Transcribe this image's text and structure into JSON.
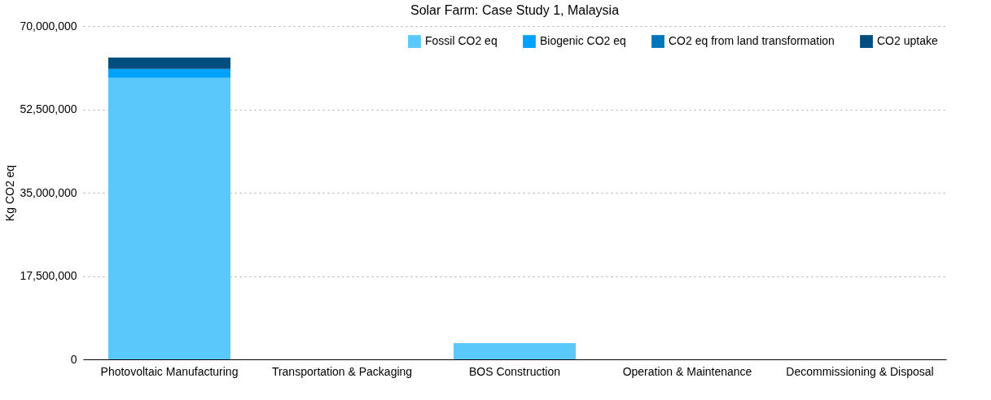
{
  "chart_data": {
    "type": "bar",
    "title": "Solar Farm: Case Study 1, Malaysia",
    "ylabel": "Kg CO2 eq",
    "categories": [
      "Photovoltaic Manufacturing",
      "Transportation & Packaging",
      "BOS Construction",
      "Operation & Maintenance",
      "Decommissioning & Disposal"
    ],
    "series": [
      {
        "name": "Fossil CO2 eq",
        "color": "#5ac8fa",
        "values": [
          59100000,
          0,
          3400000,
          0,
          0
        ]
      },
      {
        "name": "Biogenic CO2 eq",
        "color": "#00a2ff",
        "values": [
          1900000,
          0,
          0,
          0,
          0
        ]
      },
      {
        "name": "CO2 eq from land transformation",
        "color": "#0076ba",
        "values": [
          0,
          0,
          0,
          0,
          0
        ]
      },
      {
        "name": "CO2 uptake",
        "color": "#004d80",
        "values": [
          2400000,
          0,
          0,
          0,
          0
        ]
      }
    ],
    "stacked": true,
    "ylim": [
      0,
      70000000
    ],
    "yticks": [
      0,
      {
        "value": 17500000,
        "label": "17,500,000"
      },
      {
        "value": 35000000,
        "label": "35,000,000"
      },
      {
        "value": 52500000,
        "label": "52,500,000"
      },
      {
        "value": 70000000,
        "label": "70,000,000"
      }
    ],
    "grid": "y",
    "legend": "top right"
  }
}
